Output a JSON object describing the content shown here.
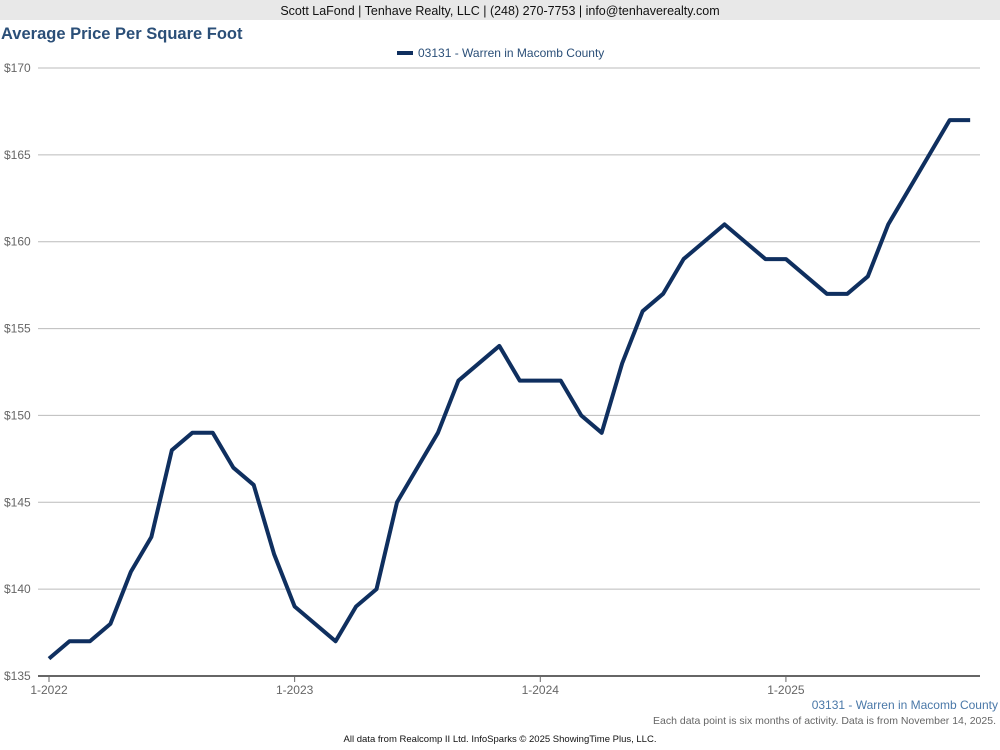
{
  "header": "Scott LaFond | Tenhave Realty, LLC | (248) 270-7753 | info@tenhaverealty.com",
  "footer": {
    "series_label": "03131 - Warren in Macomb County",
    "note": "Each data point is six months of activity. Data is from November 14, 2025.",
    "credit": "All data from Realcomp II Ltd. InfoSparks © 2025 ShowingTime Plus, LLC."
  },
  "chart_data": {
    "type": "line",
    "title": "Average Price Per Square Foot",
    "legend": "top-center",
    "ylim": [
      135,
      170
    ],
    "yticks": [
      135,
      140,
      145,
      150,
      155,
      160,
      165,
      170
    ],
    "ytick_labels": [
      "$135",
      "$140",
      "$145",
      "$150",
      "$155",
      "$160",
      "$165",
      "$170"
    ],
    "xtick_labels": [
      "1-2022",
      "1-2023",
      "1-2024",
      "1-2025"
    ],
    "xtick_index": [
      0,
      12,
      24,
      36
    ],
    "series": [
      {
        "name": "03131 - Warren in Macomb County",
        "color": "#0f2f5f",
        "values": [
          136,
          137,
          137,
          138,
          141,
          143,
          148,
          149,
          149,
          147,
          146,
          142,
          139,
          138,
          137,
          139,
          140,
          145,
          147,
          149,
          152,
          153,
          154,
          152,
          152,
          152,
          150,
          149,
          153,
          156,
          157,
          159,
          160,
          161,
          160,
          159,
          159,
          158,
          157,
          157,
          158,
          161,
          163,
          165,
          167,
          167
        ]
      }
    ]
  }
}
